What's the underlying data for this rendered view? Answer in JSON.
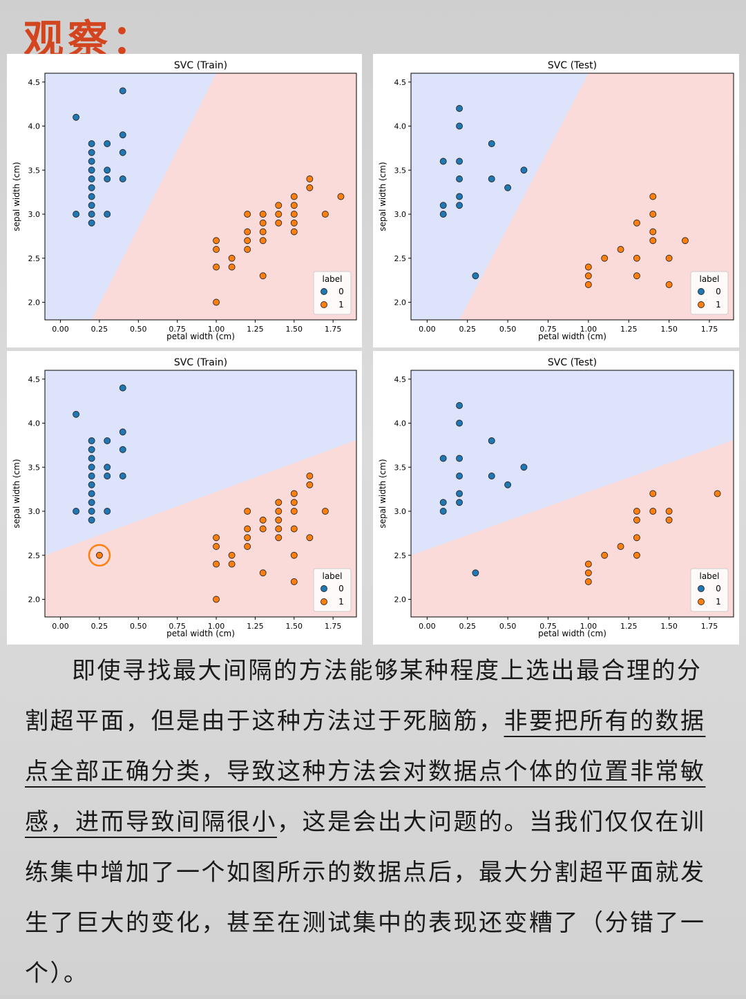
{
  "page": {
    "title": "观察：",
    "paragraph": [
      {
        "text": "即使寻找最大间隔的方法能够某种程度上选出最合理的分割超平面，但是由于这种方法过于死脑筋，",
        "underline": false
      },
      {
        "text": "非要把所有的数据点全部正确分类，导致这种方法会对数据点个体的位置非常敏感，进而导致间隔很小",
        "underline": true
      },
      {
        "text": "，这是会出大问题的。当我们仅仅在训练集中增加了一个如图所示的数据点后，最大分割超平面就发生了巨大的变化，甚至在测试集中的表现还变糟了（分错了一个）。",
        "underline": false
      }
    ]
  },
  "colors": {
    "class0": "#1f77b4",
    "class1": "#ff7f0e",
    "region0": "#dde3fb",
    "region1": "#fadbd9",
    "highlight": "#ff7f0e"
  },
  "chart_data": [
    {
      "type": "scatter",
      "title": "SVC (Train)",
      "xlabel": "petal width (cm)",
      "ylabel": "sepal width (cm)",
      "xlim": [
        -0.1,
        1.9
      ],
      "ylim": [
        1.8,
        4.6
      ],
      "xticks": [
        "0.00",
        "0.25",
        "0.50",
        "0.75",
        "1.00",
        "1.25",
        "1.50",
        "1.75"
      ],
      "yticks": [
        "2.0",
        "2.5",
        "3.0",
        "3.5",
        "4.0",
        "4.5"
      ],
      "boundary": [
        [
          0.2,
          1.8
        ],
        [
          1.0,
          4.6
        ]
      ],
      "legend": {
        "title": "label",
        "entries": [
          "0",
          "1"
        ],
        "position": "lower right"
      },
      "series": [
        {
          "name": "0",
          "points": [
            [
              0.1,
              4.1
            ],
            [
              0.1,
              3.0
            ],
            [
              0.2,
              3.8
            ],
            [
              0.2,
              3.7
            ],
            [
              0.2,
              3.6
            ],
            [
              0.2,
              3.5
            ],
            [
              0.2,
              3.4
            ],
            [
              0.2,
              3.3
            ],
            [
              0.2,
              3.2
            ],
            [
              0.2,
              3.1
            ],
            [
              0.2,
              3.0
            ],
            [
              0.2,
              2.9
            ],
            [
              0.3,
              3.8
            ],
            [
              0.3,
              3.5
            ],
            [
              0.3,
              3.4
            ],
            [
              0.3,
              3.0
            ],
            [
              0.4,
              4.4
            ],
            [
              0.4,
              3.9
            ],
            [
              0.4,
              3.7
            ],
            [
              0.4,
              3.4
            ]
          ]
        },
        {
          "name": "1",
          "points": [
            [
              1.0,
              2.7
            ],
            [
              1.0,
              2.6
            ],
            [
              1.0,
              2.4
            ],
            [
              1.0,
              2.0
            ],
            [
              1.1,
              2.5
            ],
            [
              1.1,
              2.4
            ],
            [
              1.2,
              3.0
            ],
            [
              1.2,
              2.8
            ],
            [
              1.2,
              2.7
            ],
            [
              1.2,
              2.6
            ],
            [
              1.3,
              3.0
            ],
            [
              1.3,
              2.9
            ],
            [
              1.3,
              2.8
            ],
            [
              1.3,
              2.7
            ],
            [
              1.3,
              2.3
            ],
            [
              1.4,
              3.1
            ],
            [
              1.4,
              3.0
            ],
            [
              1.4,
              2.9
            ],
            [
              1.5,
              3.2
            ],
            [
              1.5,
              3.1
            ],
            [
              1.5,
              3.0
            ],
            [
              1.5,
              2.9
            ],
            [
              1.5,
              2.8
            ],
            [
              1.6,
              3.4
            ],
            [
              1.6,
              3.3
            ],
            [
              1.7,
              3.0
            ],
            [
              1.8,
              3.2
            ]
          ]
        }
      ]
    },
    {
      "type": "scatter",
      "title": "SVC (Test)",
      "xlabel": "petal width (cm)",
      "ylabel": "sepal width (cm)",
      "xlim": [
        -0.1,
        1.9
      ],
      "ylim": [
        1.8,
        4.6
      ],
      "xticks": [
        "0.00",
        "0.25",
        "0.50",
        "0.75",
        "1.00",
        "1.25",
        "1.50",
        "1.75"
      ],
      "yticks": [
        "2.0",
        "2.5",
        "3.0",
        "3.5",
        "4.0",
        "4.5"
      ],
      "boundary": [
        [
          0.2,
          1.8
        ],
        [
          1.0,
          4.6
        ]
      ],
      "legend": {
        "title": "label",
        "entries": [
          "0",
          "1"
        ],
        "position": "lower right"
      },
      "series": [
        {
          "name": "0",
          "points": [
            [
              0.1,
              3.6
            ],
            [
              0.1,
              3.1
            ],
            [
              0.1,
              3.0
            ],
            [
              0.2,
              4.2
            ],
            [
              0.2,
              4.0
            ],
            [
              0.2,
              3.6
            ],
            [
              0.2,
              3.4
            ],
            [
              0.2,
              3.2
            ],
            [
              0.2,
              3.1
            ],
            [
              0.3,
              2.3
            ],
            [
              0.4,
              3.8
            ],
            [
              0.4,
              3.4
            ],
            [
              0.5,
              3.3
            ],
            [
              0.6,
              3.5
            ]
          ]
        },
        {
          "name": "1",
          "points": [
            [
              1.0,
              2.4
            ],
            [
              1.0,
              2.3
            ],
            [
              1.0,
              2.2
            ],
            [
              1.1,
              2.5
            ],
            [
              1.2,
              2.6
            ],
            [
              1.3,
              2.9
            ],
            [
              1.3,
              2.5
            ],
            [
              1.3,
              2.3
            ],
            [
              1.4,
              3.2
            ],
            [
              1.4,
              3.0
            ],
            [
              1.4,
              2.8
            ],
            [
              1.4,
              2.7
            ],
            [
              1.5,
              2.5
            ],
            [
              1.5,
              2.2
            ],
            [
              1.6,
              2.7
            ]
          ]
        }
      ]
    },
    {
      "type": "scatter",
      "title": "SVC (Train)",
      "xlabel": "petal width (cm)",
      "ylabel": "sepal width (cm)",
      "xlim": [
        -0.1,
        1.9
      ],
      "ylim": [
        1.8,
        4.6
      ],
      "xticks": [
        "0.00",
        "0.25",
        "0.50",
        "0.75",
        "1.00",
        "1.25",
        "1.50",
        "1.75"
      ],
      "yticks": [
        "2.0",
        "2.5",
        "3.0",
        "3.5",
        "4.0",
        "4.5"
      ],
      "boundary": [
        [
          -0.1,
          2.5
        ],
        [
          1.9,
          3.81
        ]
      ],
      "legend": {
        "title": "label",
        "entries": [
          "0",
          "1"
        ],
        "position": "lower right"
      },
      "highlight": [
        0.25,
        2.5
      ],
      "series": [
        {
          "name": "0",
          "points": [
            [
              0.1,
              4.1
            ],
            [
              0.1,
              3.0
            ],
            [
              0.2,
              3.8
            ],
            [
              0.2,
              3.7
            ],
            [
              0.2,
              3.6
            ],
            [
              0.2,
              3.5
            ],
            [
              0.2,
              3.4
            ],
            [
              0.2,
              3.3
            ],
            [
              0.2,
              3.2
            ],
            [
              0.2,
              3.1
            ],
            [
              0.2,
              3.0
            ],
            [
              0.2,
              2.9
            ],
            [
              0.3,
              3.8
            ],
            [
              0.3,
              3.5
            ],
            [
              0.3,
              3.4
            ],
            [
              0.3,
              3.0
            ],
            [
              0.4,
              4.4
            ],
            [
              0.4,
              3.9
            ],
            [
              0.4,
              3.7
            ],
            [
              0.4,
              3.4
            ]
          ]
        },
        {
          "name": "1",
          "points": [
            [
              0.25,
              2.5
            ],
            [
              1.0,
              2.7
            ],
            [
              1.0,
              2.6
            ],
            [
              1.0,
              2.4
            ],
            [
              1.0,
              2.0
            ],
            [
              1.1,
              2.5
            ],
            [
              1.1,
              2.4
            ],
            [
              1.2,
              3.0
            ],
            [
              1.2,
              2.8
            ],
            [
              1.2,
              2.7
            ],
            [
              1.2,
              2.6
            ],
            [
              1.3,
              2.9
            ],
            [
              1.3,
              2.8
            ],
            [
              1.3,
              2.3
            ],
            [
              1.4,
              3.1
            ],
            [
              1.4,
              3.0
            ],
            [
              1.4,
              2.9
            ],
            [
              1.4,
              2.8
            ],
            [
              1.4,
              2.7
            ],
            [
              1.5,
              3.2
            ],
            [
              1.5,
              3.1
            ],
            [
              1.5,
              3.0
            ],
            [
              1.5,
              2.8
            ],
            [
              1.5,
              2.5
            ],
            [
              1.5,
              2.2
            ],
            [
              1.6,
              3.4
            ],
            [
              1.6,
              3.3
            ],
            [
              1.6,
              2.7
            ],
            [
              1.7,
              3.0
            ]
          ]
        }
      ]
    },
    {
      "type": "scatter",
      "title": "SVC (Test)",
      "xlabel": "petal width (cm)",
      "ylabel": "sepal width (cm)",
      "xlim": [
        -0.1,
        1.9
      ],
      "ylim": [
        1.8,
        4.6
      ],
      "xticks": [
        "0.00",
        "0.25",
        "0.50",
        "0.75",
        "1.00",
        "1.25",
        "1.50",
        "1.75"
      ],
      "yticks": [
        "2.0",
        "2.5",
        "3.0",
        "3.5",
        "4.0",
        "4.5"
      ],
      "boundary": [
        [
          -0.1,
          2.5
        ],
        [
          1.9,
          3.81
        ]
      ],
      "legend": {
        "title": "label",
        "entries": [
          "0",
          "1"
        ],
        "position": "lower right"
      },
      "series": [
        {
          "name": "0",
          "points": [
            [
              0.1,
              3.6
            ],
            [
              0.1,
              3.1
            ],
            [
              0.1,
              3.0
            ],
            [
              0.2,
              4.2
            ],
            [
              0.2,
              4.0
            ],
            [
              0.2,
              3.6
            ],
            [
              0.2,
              3.4
            ],
            [
              0.2,
              3.2
            ],
            [
              0.2,
              3.1
            ],
            [
              0.3,
              2.3
            ],
            [
              0.4,
              3.8
            ],
            [
              0.4,
              3.4
            ],
            [
              0.5,
              3.3
            ],
            [
              0.6,
              3.5
            ]
          ]
        },
        {
          "name": "1",
          "points": [
            [
              1.0,
              2.4
            ],
            [
              1.0,
              2.3
            ],
            [
              1.0,
              2.2
            ],
            [
              1.1,
              2.5
            ],
            [
              1.2,
              2.6
            ],
            [
              1.3,
              3.0
            ],
            [
              1.3,
              2.9
            ],
            [
              1.3,
              2.7
            ],
            [
              1.3,
              2.5
            ],
            [
              1.4,
              3.2
            ],
            [
              1.4,
              3.0
            ],
            [
              1.5,
              3.0
            ],
            [
              1.5,
              2.9
            ],
            [
              1.8,
              3.2
            ]
          ]
        }
      ]
    }
  ]
}
